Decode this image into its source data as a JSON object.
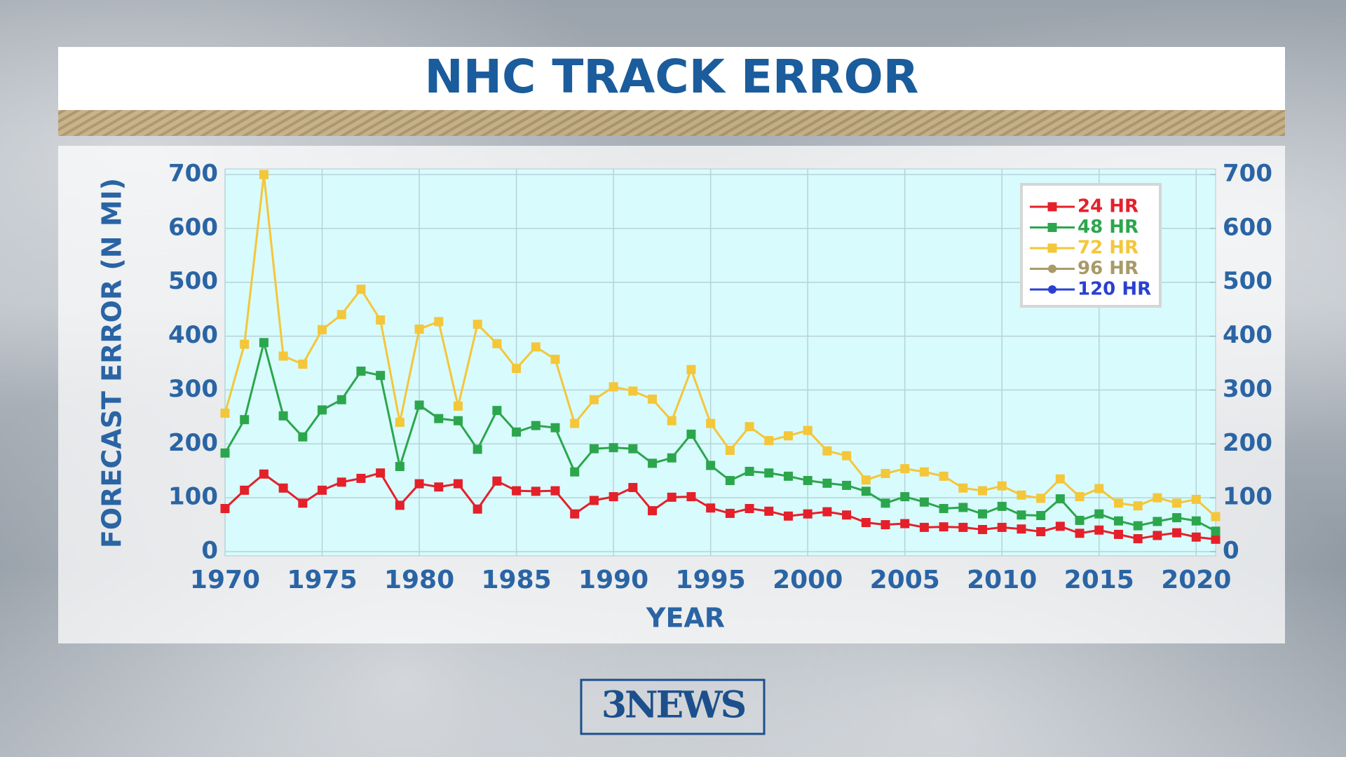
{
  "chart_data": {
    "type": "line",
    "title": "NHC TRACK ERROR",
    "brand": "3NEWS",
    "xlabel": "YEAR",
    "ylabel": "FORECAST ERROR (N MI)",
    "x": [
      1970,
      1971,
      1972,
      1973,
      1974,
      1975,
      1976,
      1977,
      1978,
      1979,
      1980,
      1981,
      1982,
      1983,
      1984,
      1985,
      1986,
      1987,
      1988,
      1989,
      1990,
      1991,
      1992,
      1993,
      1994,
      1995,
      1996,
      1997,
      1998,
      1999,
      2000,
      2001,
      2002,
      2003,
      2004,
      2005,
      2006,
      2007,
      2008,
      2009,
      2010,
      2011,
      2012,
      2013,
      2014,
      2015,
      2016,
      2017,
      2018,
      2019,
      2020,
      2021
    ],
    "xlim": [
      1970,
      2021
    ],
    "xticks": [
      1970,
      1975,
      1980,
      1985,
      1990,
      1995,
      2000,
      2005,
      2010,
      2015,
      2020
    ],
    "ylim": [
      0,
      700
    ],
    "yticks": [
      0,
      100,
      200,
      300,
      400,
      500,
      600,
      700
    ],
    "y2lim": [
      0,
      700
    ],
    "y2ticks": [
      0,
      100,
      200,
      300,
      400,
      500,
      600,
      700
    ],
    "grid": true,
    "legend": "upper right",
    "series": [
      {
        "name": "24 HR",
        "color": "#e4202a",
        "marker": "square",
        "values": [
          80,
          114,
          144,
          118,
          90,
          114,
          129,
          136,
          146,
          86,
          126,
          120,
          126,
          79,
          131,
          113,
          112,
          113,
          70,
          95,
          102,
          119,
          76,
          101,
          102,
          81,
          71,
          80,
          75,
          66,
          70,
          74,
          68,
          54,
          50,
          52,
          45,
          46,
          45,
          41,
          45,
          42,
          37,
          47,
          34,
          40,
          32,
          24,
          30,
          35,
          27,
          23
        ]
      },
      {
        "name": "48 HR",
        "color": "#2ca64c",
        "marker": "square",
        "values": [
          183,
          245,
          388,
          252,
          213,
          263,
          282,
          335,
          327,
          158,
          272,
          247,
          243,
          190,
          262,
          222,
          234,
          230,
          148,
          191,
          193,
          191,
          164,
          174,
          218,
          160,
          132,
          149,
          146,
          140,
          132,
          127,
          123,
          112,
          90,
          102,
          92,
          80,
          82,
          70,
          84,
          68,
          67,
          98,
          58,
          70,
          57,
          48,
          56,
          63,
          57,
          38
        ]
      },
      {
        "name": "72 HR",
        "color": "#f4c63a",
        "marker": "square",
        "values": [
          257,
          385,
          700,
          363,
          348,
          412,
          440,
          487,
          430,
          240,
          413,
          427,
          270,
          422,
          386,
          340,
          380,
          357,
          238,
          282,
          306,
          298,
          283,
          243,
          338,
          238,
          188,
          232,
          206,
          215,
          225,
          187,
          178,
          133,
          145,
          154,
          148,
          140,
          118,
          113,
          122,
          105,
          99,
          135,
          102,
          117,
          90,
          85,
          100,
          90,
          97,
          65
        ]
      },
      {
        "name": "96 HR",
        "color": "#a99a68",
        "marker": "circle",
        "values": [
          null,
          null,
          null,
          null,
          null,
          null,
          null,
          null,
          null,
          null,
          null,
          null,
          null,
          null,
          null,
          null,
          null,
          null,
          null,
          null,
          null,
          null,
          null,
          null,
          null,
          null,
          null,
          null,
          null,
          null,
          null,
          null,
          null,
          null,
          null,
          null,
          null,
          null,
          null,
          null,
          null,
          null,
          null,
          null,
          null,
          null,
          null,
          null,
          null,
          null,
          null,
          null
        ]
      },
      {
        "name": "120 HR",
        "color": "#2a40d2",
        "marker": "circle",
        "values": [
          null,
          null,
          null,
          null,
          null,
          null,
          null,
          null,
          null,
          null,
          null,
          null,
          null,
          null,
          null,
          null,
          null,
          null,
          null,
          null,
          null,
          null,
          null,
          null,
          null,
          null,
          null,
          null,
          null,
          null,
          null,
          null,
          null,
          null,
          null,
          null,
          null,
          null,
          null,
          null,
          null,
          null,
          null,
          null,
          null,
          null,
          null,
          null,
          null,
          null,
          null,
          null
        ]
      }
    ]
  }
}
